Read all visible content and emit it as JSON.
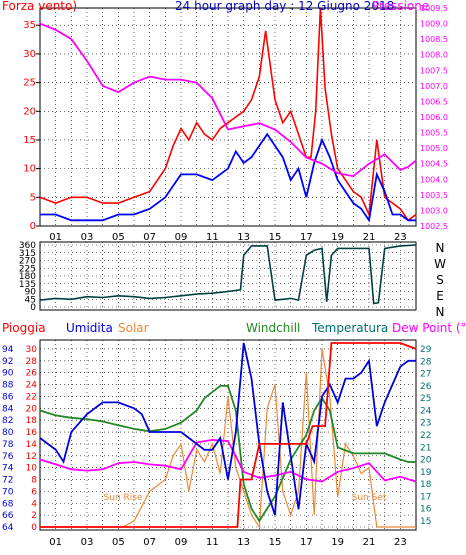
{
  "colors": {
    "wind": "#ff0000",
    "gust_line": "#0000ff",
    "pressure": "#ff00ff",
    "title": "#0000c0",
    "direction": "#004040",
    "rain": "#ff0000",
    "humidity": "#0000dd",
    "solar": "#ee8833",
    "windchill": "#228822",
    "temperature": "#007070",
    "dewpoint": "#ff00ff",
    "grid": "#000000"
  },
  "chart_data": [
    {
      "type": "line",
      "title": "24 hour graph day : 12 Giugno 2018",
      "left_label": "Forza vento)",
      "right_label": "Pressione",
      "x_ticks": [
        "01",
        "03",
        "05",
        "07",
        "09",
        "11",
        "13",
        "15",
        "17",
        "19",
        "21",
        "23"
      ],
      "x_range": [
        0,
        24
      ],
      "left_axis": {
        "ylim": [
          0,
          38
        ],
        "ticks": [
          0,
          5,
          10,
          15,
          20,
          25,
          30,
          35
        ]
      },
      "right_axis": {
        "ylim": [
          1002.5,
          1009.5
        ],
        "ticks": [
          1002.5,
          1003,
          1003.5,
          1004,
          1004.5,
          1005,
          1005.5,
          1006,
          1006.5,
          1007,
          1007.5,
          1008,
          1008.5,
          1009,
          1009.5
        ]
      },
      "series": [
        {
          "key": "wind_red",
          "axis": "left",
          "x": [
            0,
            1,
            2,
            3,
            4,
            5,
            6,
            7,
            8,
            8.5,
            9,
            9.5,
            10,
            10.5,
            11,
            11.5,
            12,
            12.5,
            13,
            13.5,
            14,
            14.4,
            14.6,
            15,
            15.5,
            16,
            16.5,
            17,
            17.3,
            17.6,
            17.9,
            18.2,
            18.6,
            19,
            19.5,
            20,
            20.5,
            21,
            21.5,
            22,
            22.5,
            23,
            23.5,
            24
          ],
          "y": [
            5,
            4,
            5,
            5,
            4,
            4,
            5,
            6,
            10,
            14,
            17,
            15,
            18,
            16,
            15,
            17,
            18,
            19,
            20,
            22,
            26,
            34,
            30,
            22,
            18,
            20,
            16,
            12,
            12,
            20,
            38,
            24,
            16,
            10,
            8,
            6,
            5,
            2,
            15,
            5,
            4,
            3,
            1,
            2
          ]
        },
        {
          "key": "gust_blue",
          "axis": "left",
          "x": [
            0,
            1,
            2,
            3,
            4,
            5,
            6,
            7,
            8,
            9,
            10,
            11,
            12,
            12.5,
            13,
            13.5,
            14,
            14.5,
            15,
            15.5,
            16,
            16.5,
            17,
            17.5,
            18,
            18.5,
            19,
            19.5,
            20,
            20.5,
            21,
            21.5,
            22,
            22.5,
            23,
            23.5,
            24
          ],
          "y": [
            2,
            2,
            1,
            1,
            1,
            2,
            2,
            3,
            5,
            9,
            9,
            8,
            10,
            13,
            11,
            12,
            14,
            16,
            14,
            12,
            8,
            10,
            5,
            11,
            15,
            12,
            8,
            6,
            4,
            3,
            1,
            9,
            6,
            2,
            2,
            1,
            1
          ]
        },
        {
          "key": "pressure",
          "axis": "right",
          "x": [
            0,
            1,
            2,
            3,
            4,
            5,
            6,
            7,
            8,
            9,
            10,
            11,
            12,
            13,
            14,
            15,
            16,
            17,
            18,
            19,
            20,
            21,
            22,
            23,
            23.5,
            24
          ],
          "y": [
            1009,
            1008.8,
            1008.5,
            1007.8,
            1007,
            1006.8,
            1007.1,
            1007.3,
            1007.2,
            1007.2,
            1007.1,
            1006.6,
            1005.6,
            1005.7,
            1005.8,
            1005.6,
            1005.2,
            1004.7,
            1004.5,
            1004.2,
            1004.1,
            1004.5,
            1004.8,
            1004.3,
            1004.4,
            1004.6
          ]
        }
      ]
    },
    {
      "type": "line",
      "title": "",
      "x_range": [
        0,
        24
      ],
      "left_axis": {
        "ylim": [
          0,
          360
        ],
        "ticks": [
          0,
          45,
          90,
          135,
          180,
          225,
          270,
          315,
          360
        ]
      },
      "right_labels": [
        "N",
        "W",
        "S",
        "E",
        "N"
      ],
      "series": [
        {
          "key": "direction",
          "x": [
            0,
            1,
            2,
            3,
            4,
            5,
            6,
            7,
            8,
            9,
            10,
            11,
            12,
            12.8,
            13,
            13.5,
            14,
            14.5,
            15,
            15.5,
            16,
            16.5,
            17,
            17.5,
            18,
            18.3,
            18.6,
            19,
            20,
            21,
            21.3,
            21.6,
            22,
            23,
            24
          ],
          "y": [
            40,
            50,
            45,
            60,
            55,
            65,
            60,
            50,
            55,
            65,
            75,
            80,
            90,
            100,
            300,
            355,
            355,
            355,
            40,
            45,
            50,
            40,
            300,
            330,
            340,
            30,
            300,
            340,
            340,
            340,
            20,
            25,
            340,
            355,
            360
          ]
        }
      ]
    },
    {
      "type": "line",
      "title": "",
      "labels": {
        "rain": "Pioggia",
        "humidity": "Umidita",
        "solar": "Solar",
        "windchill": "Windchill",
        "temperature": "Temperatura",
        "dewpoint": "Dew Point (°C)"
      },
      "x_range": [
        0,
        24
      ],
      "humidity_axis": {
        "ylim": [
          64,
          95
        ],
        "ticks": [
          64,
          66,
          68,
          70,
          72,
          74,
          76,
          78,
          80,
          82,
          84,
          86,
          88,
          90,
          92,
          94
        ]
      },
      "rain_axis": {
        "ylim": [
          0,
          31
        ],
        "ticks": [
          0,
          2,
          4,
          6,
          8,
          10,
          12,
          14,
          16,
          18,
          20,
          22,
          24,
          26,
          28,
          30
        ]
      },
      "temp_axis": {
        "ylim": [
          14.5,
          29.5
        ],
        "ticks": [
          15,
          16,
          17,
          18,
          19,
          20,
          21,
          22,
          23,
          24,
          25,
          26,
          27,
          28,
          29
        ]
      },
      "annotations": [
        {
          "text": "Sun Rise",
          "x": 5.3
        },
        {
          "text": "Sun Set",
          "x": 21.0
        }
      ],
      "series": [
        {
          "key": "rain",
          "axis": "rain",
          "x": [
            0,
            12.6,
            12.8,
            13.5,
            14,
            17,
            17.4,
            18.2,
            18.6,
            23,
            24
          ],
          "y": [
            0,
            0,
            8,
            8,
            14,
            14,
            17,
            17,
            31,
            31,
            30
          ]
        },
        {
          "key": "humidity",
          "axis": "humidity",
          "x": [
            0,
            1,
            1.5,
            2,
            3,
            4,
            5,
            6,
            6.5,
            7,
            8,
            9,
            10,
            10.5,
            11,
            11.5,
            12,
            12.5,
            13,
            13.5,
            14,
            14.5,
            15,
            15.5,
            16,
            16.5,
            17,
            17.5,
            18,
            18.5,
            19,
            19.5,
            20,
            20.5,
            21,
            21.5,
            22,
            22.5,
            23,
            23.5,
            24
          ],
          "y": [
            79,
            77,
            75,
            80,
            83,
            85,
            85,
            84,
            83,
            80,
            80,
            80,
            78,
            77,
            77,
            79,
            72,
            80,
            95,
            89,
            78,
            70,
            66,
            85,
            76,
            67,
            78,
            75,
            86,
            88,
            85,
            89,
            89,
            90,
            92,
            81,
            85,
            88,
            91,
            92,
            92
          ]
        },
        {
          "key": "solar",
          "axis": "rain",
          "x": [
            0,
            5,
            5.3,
            6,
            7,
            8,
            8.5,
            9,
            9.5,
            10,
            10.5,
            11,
            11.5,
            12,
            12.5,
            13,
            13.5,
            14,
            14.5,
            15,
            15.5,
            16,
            16.5,
            17,
            17.5,
            18,
            18.5,
            19,
            19.5,
            20,
            20.5,
            21,
            21.5,
            24
          ],
          "y": [
            0,
            0,
            0,
            1,
            6,
            8,
            12,
            14,
            6,
            13,
            11,
            14,
            9,
            22,
            10,
            6,
            2,
            0,
            20,
            24,
            6,
            2,
            6,
            26,
            2,
            30,
            22,
            5,
            14,
            12,
            9,
            10,
            0,
            0
          ]
        },
        {
          "key": "windchill",
          "axis": "temp",
          "x": [
            0,
            1,
            2,
            3,
            4,
            5,
            6,
            7,
            8,
            9,
            10,
            10.5,
            11,
            11.5,
            12,
            12.5,
            13,
            13.5,
            14,
            15,
            16,
            17,
            17.5,
            18,
            18.5,
            19,
            20,
            21,
            22,
            23,
            23.5,
            24
          ],
          "y": [
            24,
            23.6,
            23.4,
            23.3,
            23.1,
            22.8,
            22.5,
            22.3,
            22.5,
            23,
            24,
            25,
            25.5,
            26,
            26,
            24,
            18,
            16,
            15,
            17,
            20,
            22,
            24,
            25,
            24,
            21,
            20.5,
            20.5,
            20.5,
            20,
            19.8,
            19.8
          ]
        },
        {
          "key": "temperature",
          "axis": "temp",
          "x": [
            0,
            1,
            2,
            3,
            4,
            5,
            6,
            7,
            8,
            9,
            10,
            10.5,
            11,
            11.5,
            12,
            12.5,
            13,
            13.5,
            14,
            15,
            16,
            17,
            17.5,
            18,
            18.5,
            19,
            20,
            21,
            22,
            23,
            23.5,
            24
          ],
          "y": [
            24,
            23.6,
            23.4,
            23.3,
            23.1,
            22.8,
            22.5,
            22.3,
            22.5,
            23,
            24,
            25,
            25.5,
            26,
            26,
            24,
            18,
            16,
            15,
            17,
            20,
            22,
            24,
            25,
            24,
            21,
            20.5,
            20.5,
            20.5,
            20,
            19.8,
            19.8
          ]
        },
        {
          "key": "dewpoint",
          "axis": "temp",
          "x": [
            0,
            1,
            2,
            3,
            4,
            5,
            6,
            7,
            8,
            9,
            10,
            11,
            12,
            13,
            14,
            15,
            16,
            17,
            18,
            19,
            20,
            21,
            22,
            23,
            24
          ],
          "y": [
            20,
            19.6,
            19.2,
            19.1,
            19.2,
            19.7,
            19.8,
            19.6,
            19.5,
            19.2,
            21.4,
            21.6,
            21.5,
            19,
            18.5,
            18.7,
            19,
            18.4,
            18.2,
            19,
            19.3,
            19.7,
            18.3,
            18.6,
            18.2
          ]
        }
      ]
    }
  ]
}
